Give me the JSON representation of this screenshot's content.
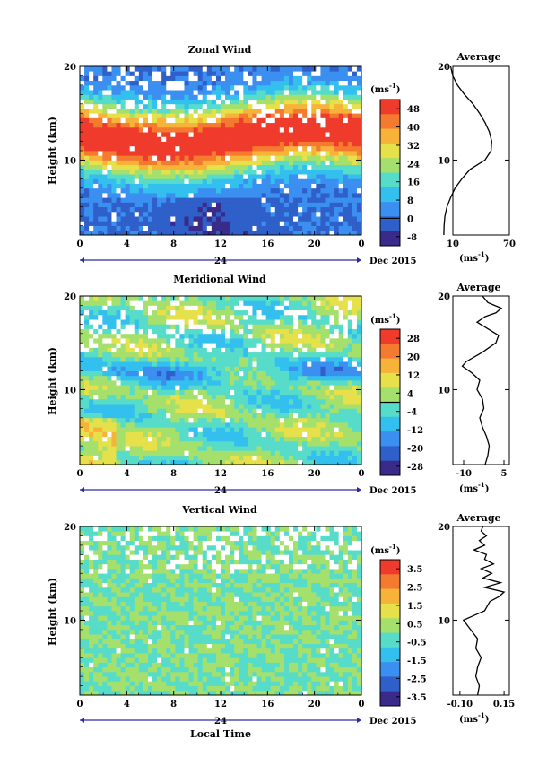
{
  "chart_data": [
    {
      "type": "heatmap",
      "title": "Zonal Wind",
      "ylabel": "Height (km)",
      "x_ticks": [
        "0",
        "4",
        "8",
        "12",
        "16",
        "20",
        "0"
      ],
      "x_ticks_label_shown": [
        "0",
        "4",
        "8",
        "12",
        "16",
        "20",
        "0"
      ],
      "x_range_hours": [
        0,
        24
      ],
      "x_secondary_label": "24",
      "date_label": "Dec 2015",
      "y_ticks": [
        "20",
        "10"
      ],
      "ylim": [
        2,
        20
      ],
      "colorbar": {
        "unit": "(ms",
        "unit_exp": "-1",
        "unit_close": ")",
        "ticks": [
          "48",
          "40",
          "32",
          "24",
          "16",
          "8",
          "0",
          "-8"
        ],
        "range": [
          -12,
          52
        ],
        "colors": [
          "#3a2a8a",
          "#2f5fc8",
          "#3b8ff0",
          "#34c0ee",
          "#57dcc9",
          "#a5e06c",
          "#e6e04a",
          "#f7b23a",
          "#f47a2f",
          "#ef3b2c"
        ],
        "zero_line": 0
      },
      "profile": [
        [
          2.0,
          0.4
        ],
        [
          3.0,
          0.7
        ],
        [
          4.0,
          1.5
        ],
        [
          5.0,
          3.7
        ],
        [
          6.0,
          7.6
        ],
        [
          7.0,
          12.3
        ],
        [
          8.0,
          19.6
        ],
        [
          9.0,
          28.2
        ],
        [
          10.0,
          44.1
        ],
        [
          11.0,
          50.6
        ],
        [
          12.0,
          51.2
        ],
        [
          13.0,
          48.8
        ],
        [
          14.0,
          44.2
        ],
        [
          15.0,
          38.3
        ],
        [
          16.0,
          31.2
        ],
        [
          17.0,
          22.3
        ],
        [
          18.0,
          14.9
        ],
        [
          19.0,
          9.9
        ],
        [
          20.0,
          7.6
        ]
      ]
    },
    {
      "type": "heatmap",
      "title": "Meridional Wind",
      "ylabel": "Height (km)",
      "x_ticks": [
        "0",
        "4",
        "8",
        "12",
        "16",
        "20",
        "0"
      ],
      "x_range_hours": [
        0,
        24
      ],
      "x_secondary_label": "24",
      "date_label": "Dec 2015",
      "y_ticks": [
        "20",
        "10"
      ],
      "ylim": [
        2,
        20
      ],
      "colorbar": {
        "unit": "(ms",
        "unit_exp": "-1",
        "unit_close": ")",
        "ticks": [
          "28",
          "20",
          "12",
          "4",
          "-4",
          "-12",
          "-20",
          "-28"
        ],
        "range": [
          -32,
          32
        ],
        "colors": [
          "#3a2a8a",
          "#2f5fc8",
          "#3b8ff0",
          "#34c0ee",
          "#57dcc9",
          "#a5e06c",
          "#e6e04a",
          "#f7b23a",
          "#f47a2f",
          "#ef3b2c"
        ],
        "zero_line": 0
      },
      "profile": [
        [
          2.0,
          -2.0
        ],
        [
          3.0,
          -1.0
        ],
        [
          4.0,
          -0.5
        ],
        [
          5.0,
          -1.5
        ],
        [
          6.0,
          -3.0
        ],
        [
          7.0,
          -4.0
        ],
        [
          8.0,
          -2.5
        ],
        [
          9.0,
          -3.0
        ],
        [
          10.0,
          -5.0
        ],
        [
          11.0,
          -4.0
        ],
        [
          11.8,
          -7.0
        ],
        [
          12.5,
          -10.5
        ],
        [
          13.0,
          -9.0
        ],
        [
          14.0,
          -3.0
        ],
        [
          15.0,
          2.0
        ],
        [
          15.8,
          3.0
        ],
        [
          16.5,
          -1.0
        ],
        [
          17.2,
          -5.0
        ],
        [
          17.8,
          -2.0
        ],
        [
          18.2,
          2.0
        ],
        [
          18.7,
          4.0
        ],
        [
          19.3,
          -1.0
        ],
        [
          20.0,
          -3.0
        ]
      ]
    },
    {
      "type": "heatmap",
      "title": "Vertical Wind",
      "ylabel": "Height (km)",
      "xlabel": "Local Time",
      "x_ticks": [
        "0",
        "4",
        "8",
        "12",
        "16",
        "20",
        "0"
      ],
      "x_range_hours": [
        0,
        24
      ],
      "x_secondary_label": "24",
      "date_label": "Dec 2015",
      "y_ticks": [
        "20",
        "10"
      ],
      "ylim": [
        2,
        20
      ],
      "colorbar": {
        "unit": "(ms",
        "unit_exp": "-1",
        "unit_close": ")",
        "ticks": [
          "3.5",
          "2.5",
          "1.5",
          "0.5",
          "-0.5",
          "-1.5",
          "-2.5",
          "-3.5"
        ],
        "range": [
          -4,
          4
        ],
        "colors": [
          "#3a2a8a",
          "#2f5fc8",
          "#3b8ff0",
          "#34c0ee",
          "#57dcc9",
          "#a5e06c",
          "#e6e04a",
          "#f7b23a",
          "#f47a2f",
          "#ef3b2c"
        ]
      },
      "profile": [
        [
          2.0,
          0.0
        ],
        [
          3.0,
          0.01
        ],
        [
          4.0,
          -0.01
        ],
        [
          5.0,
          0.0
        ],
        [
          6.0,
          0.02
        ],
        [
          7.0,
          -0.01
        ],
        [
          8.0,
          0.0
        ],
        [
          9.0,
          -0.04
        ],
        [
          10.0,
          -0.08
        ],
        [
          10.5,
          -0.02
        ],
        [
          11.0,
          0.04
        ],
        [
          12.0,
          0.07
        ],
        [
          12.5,
          0.12
        ],
        [
          13.0,
          0.15
        ],
        [
          13.5,
          0.04
        ],
        [
          14.0,
          0.13
        ],
        [
          14.5,
          0.03
        ],
        [
          15.0,
          0.08
        ],
        [
          15.5,
          0.02
        ],
        [
          16.0,
          0.09
        ],
        [
          16.5,
          0.04
        ],
        [
          17.0,
          0.05
        ],
        [
          17.5,
          -0.02
        ],
        [
          18.0,
          0.04
        ],
        [
          18.5,
          0.01
        ],
        [
          19.0,
          0.05
        ],
        [
          19.5,
          0.02
        ],
        [
          20.0,
          0.03
        ]
      ]
    }
  ],
  "profiles": [
    {
      "title": "Average",
      "x_ticks": [
        "10",
        "70"
      ],
      "xlim": [
        10,
        70
      ],
      "y_ticks": [
        "20",
        "10"
      ],
      "unit": "(ms",
      "unit_exp": "-1",
      "unit_close": ")"
    },
    {
      "title": "Average",
      "x_ticks": [
        "-10",
        "5"
      ],
      "xlim": [
        -14,
        7
      ],
      "y_ticks": [
        "20",
        "10"
      ],
      "unit": "(ms",
      "unit_exp": "-1",
      "unit_close": ")"
    },
    {
      "title": "Average",
      "x_ticks": [
        "-0.10",
        "0.15"
      ],
      "xlim": [
        -0.14,
        0.18
      ],
      "y_ticks": [
        "20",
        "10"
      ],
      "unit": "(ms",
      "unit_exp": "-1",
      "unit_close": ")"
    }
  ]
}
